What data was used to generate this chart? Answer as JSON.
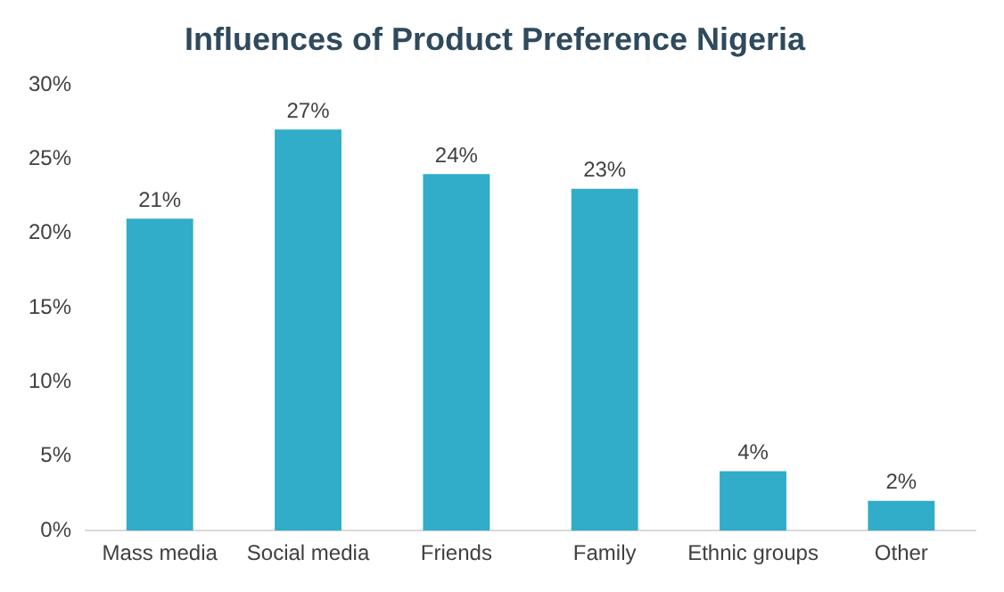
{
  "chart_data": {
    "type": "bar",
    "title": "Influences of Product Preference Nigeria",
    "categories": [
      "Mass media",
      "Social media",
      "Friends",
      "Family",
      "Ethnic groups",
      "Other"
    ],
    "values": [
      21,
      27,
      24,
      23,
      4,
      2
    ],
    "value_labels": [
      "21%",
      "27%",
      "24%",
      "23%",
      "4%",
      "2%"
    ],
    "color": "#31acc9",
    "ylim": [
      0,
      30
    ],
    "yticks": [
      {
        "value": 0,
        "label": "0%"
      },
      {
        "value": 5,
        "label": "5%"
      },
      {
        "value": 10,
        "label": "10%"
      },
      {
        "value": 15,
        "label": "15%"
      },
      {
        "value": 20,
        "label": "20%"
      },
      {
        "value": 25,
        "label": "25%"
      },
      {
        "value": 30,
        "label": "30%"
      }
    ],
    "grid": false,
    "legend": false
  }
}
